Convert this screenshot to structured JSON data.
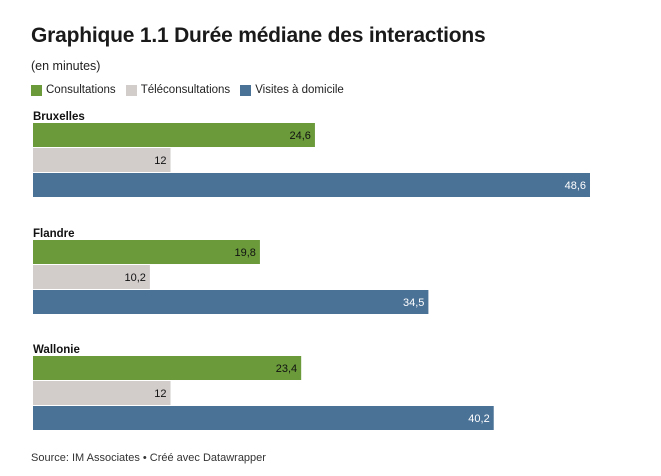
{
  "title": "Graphique 1.1 Durée médiane des interactions",
  "subtitle": "(en minutes)",
  "source": "Source: IM Associates • Créé avec Datawrapper",
  "colors": {
    "Consultations": "#6a9a3a",
    "Téléconsultations": "#d2cccb",
    "Visites à domicile": "#4a7196"
  },
  "chart_data": {
    "type": "bar",
    "orientation": "horizontal",
    "categories": [
      "Bruxelles",
      "Flandre",
      "Wallonie"
    ],
    "series": [
      {
        "name": "Consultations",
        "values": [
          24.6,
          19.8,
          23.4
        ],
        "labels": [
          "24,6",
          "19,8",
          "23,4"
        ]
      },
      {
        "name": "Téléconsultations",
        "values": [
          12,
          10.2,
          12
        ],
        "labels": [
          "12",
          "10,2",
          "12"
        ]
      },
      {
        "name": "Visites à domicile",
        "values": [
          48.6,
          34.5,
          40.2
        ],
        "labels": [
          "48,6",
          "34,5",
          "40,2"
        ]
      }
    ],
    "title": "Graphique 1.1 Durée médiane des interactions",
    "subtitle": "(en minutes)",
    "xlim": [
      0,
      48.6
    ],
    "grid": false,
    "legend": "top-left"
  }
}
